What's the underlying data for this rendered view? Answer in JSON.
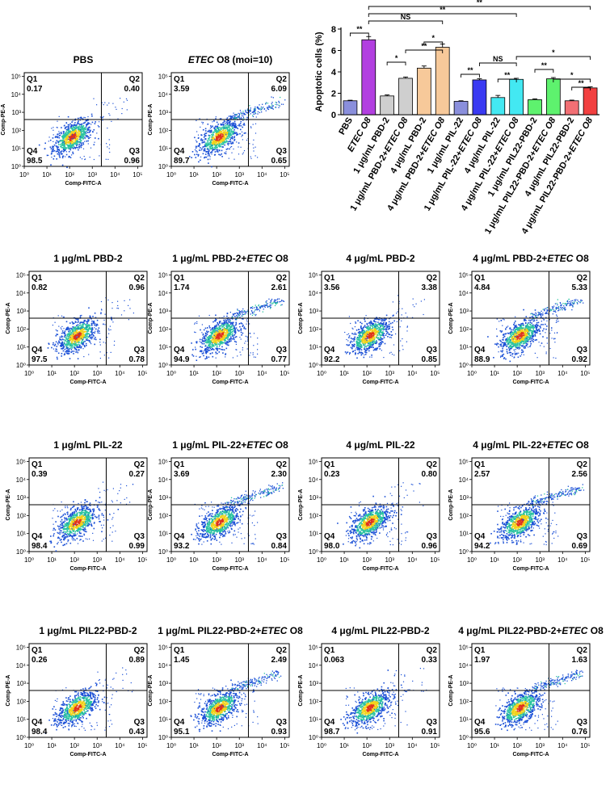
{
  "colors": {
    "density_low": "#1a4fd6",
    "density_mid": "#2bc4a0",
    "density_high": "#f2d21b",
    "density_peak": "#e0321c"
  },
  "axes": {
    "xlabel": "Comp-FITC-A",
    "ylabel": "Comp-PE-A",
    "ticks": [
      "10⁰",
      "10¹",
      "10²",
      "10³",
      "10⁴",
      "10⁵"
    ],
    "quadrant_labels": [
      "Q1",
      "Q2",
      "Q3",
      "Q4"
    ]
  },
  "chart_data": [
    {
      "type": "bar",
      "title": "",
      "xlabel": "",
      "ylabel": "Apoptotic cells (%)",
      "ylim": [
        0,
        8
      ],
      "yticks": [
        0,
        2,
        4,
        6,
        8
      ],
      "categories": [
        {
          "text": "PBS",
          "italic_part": ""
        },
        {
          "text": "",
          "italic_part": "ETEC O8"
        },
        {
          "text": "1 μg/mL PBD-2",
          "italic_part": ""
        },
        {
          "text": "1 μg/mL PBD-2+",
          "italic_part": "ETEC O8"
        },
        {
          "text": "4 μg/mL PBD-2",
          "italic_part": ""
        },
        {
          "text": "4 μg/mL PBD-2+",
          "italic_part": "ETEC O8"
        },
        {
          "text": "1 μg/mL PIL-22",
          "italic_part": ""
        },
        {
          "text": "1 μg/mL PIL-22+",
          "italic_part": "ETEC O8"
        },
        {
          "text": "4 μg/mL PIL-22",
          "italic_part": ""
        },
        {
          "text": "4 μg/mL PIL-22+",
          "italic_part": "ETEC O8"
        },
        {
          "text": "1 μg/mL PIL22-PBD-2",
          "italic_part": ""
        },
        {
          "text": "1 μg/mL PIL22-PBD-2+",
          "italic_part": "ETEC O8"
        },
        {
          "text": "4 μg/mL PIL22-PBD-2",
          "italic_part": ""
        },
        {
          "text": "4 μg/mL PIL22-PBD-2+",
          "italic_part": "ETEC O8"
        }
      ],
      "values": [
        1.3,
        7.0,
        1.75,
        3.4,
        4.35,
        6.3,
        1.25,
        3.25,
        1.6,
        3.3,
        1.4,
        3.35,
        1.3,
        2.5
      ],
      "errors": [
        0.05,
        0.3,
        0.1,
        0.12,
        0.2,
        0.3,
        0.05,
        0.12,
        0.2,
        0.1,
        0.08,
        0.12,
        0.06,
        0.1
      ],
      "bar_colors": [
        "#8a8fdc",
        "#b23fe0",
        "#cfcfcf",
        "#cfcfcf",
        "#f7c99a",
        "#f7c99a",
        "#8a8fdc",
        "#3a3af2",
        "#43e8f2",
        "#43e8f2",
        "#5ef26e",
        "#5ef26e",
        "#f26f74",
        "#f24040"
      ],
      "significance": [
        {
          "from": 0,
          "to": 1,
          "label": "**"
        },
        {
          "from": 1,
          "to": 5,
          "label": "NS"
        },
        {
          "from": 1,
          "to": 9,
          "label": "**"
        },
        {
          "from": 1,
          "to": 13,
          "label": "**"
        },
        {
          "from": 2,
          "to": 3,
          "label": "*"
        },
        {
          "from": 3,
          "to": 5,
          "label": "**"
        },
        {
          "from": 4,
          "to": 5,
          "label": "*"
        },
        {
          "from": 6,
          "to": 7,
          "label": "**"
        },
        {
          "from": 7,
          "to": 9,
          "label": "NS"
        },
        {
          "from": 8,
          "to": 9,
          "label": "**"
        },
        {
          "from": 9,
          "to": 13,
          "label": "*"
        },
        {
          "from": 10,
          "to": 11,
          "label": "**"
        },
        {
          "from": 11,
          "to": 13,
          "label": "*"
        },
        {
          "from": 12,
          "to": 13,
          "label": "**"
        }
      ]
    },
    {
      "type": "scatter",
      "subtype": "flow-cytometry-panels",
      "panels": [
        {
          "title": "PBS",
          "title_italic": "",
          "title_suffix": "",
          "q1": "0.17",
          "q2": "0.40",
          "q3": "0.96",
          "q4": "98.5",
          "infected": false
        },
        {
          "title": "",
          "title_italic": "ETEC",
          "title_suffix": " O8 (moi=10)",
          "q1": "3.59",
          "q2": "6.09",
          "q3": "0.65",
          "q4": "89.7",
          "infected": true
        },
        {
          "title": "1 μg/mL PBD-2",
          "title_italic": "",
          "title_suffix": "",
          "q1": "0.82",
          "q2": "0.96",
          "q3": "0.78",
          "q4": "97.5",
          "infected": false
        },
        {
          "title": "1 μg/mL PBD-2+",
          "title_italic": "ETEC",
          "title_suffix": " O8",
          "q1": "1.74",
          "q2": "2.61",
          "q3": "0.77",
          "q4": "94.9",
          "infected": true
        },
        {
          "title": "4 μg/mL PBD-2",
          "title_italic": "",
          "title_suffix": "",
          "q1": "3.56",
          "q2": "3.38",
          "q3": "0.85",
          "q4": "92.2",
          "infected": false
        },
        {
          "title": "4 μg/mL PBD-2+",
          "title_italic": "ETEC",
          "title_suffix": " O8",
          "q1": "4.84",
          "q2": "5.33",
          "q3": "0.92",
          "q4": "88.9",
          "infected": true
        },
        {
          "title": "1 μg/mL PIL-22",
          "title_italic": "",
          "title_suffix": "",
          "q1": "0.39",
          "q2": "0.27",
          "q3": "0.99",
          "q4": "98.4",
          "infected": false
        },
        {
          "title": "1 μg/mL PIL-22+",
          "title_italic": "ETEC",
          "title_suffix": " O8",
          "q1": "3.69",
          "q2": "2.30",
          "q3": "0.84",
          "q4": "93.2",
          "infected": true
        },
        {
          "title": "4 μg/mL PIL-22",
          "title_italic": "",
          "title_suffix": "",
          "q1": "0.23",
          "q2": "0.80",
          "q3": "0.96",
          "q4": "98.0",
          "infected": false
        },
        {
          "title": "4 μg/mL PIL-22+",
          "title_italic": "ETEC",
          "title_suffix": " O8",
          "q1": "2.57",
          "q2": "2.56",
          "q3": "0.69",
          "q4": "94.2",
          "infected": true
        },
        {
          "title": "1 μg/mL PIL22-PBD-2",
          "title_italic": "",
          "title_suffix": "",
          "q1": "0.26",
          "q2": "0.89",
          "q3": "0.43",
          "q4": "98.4",
          "infected": false
        },
        {
          "title": "1 μg/mL  PIL22-PBD-2+",
          "title_italic": "ETEC",
          "title_suffix": " O8",
          "q1": "1.45",
          "q2": "2.49",
          "q3": "0.93",
          "q4": "95.1",
          "infected": true
        },
        {
          "title": "4 μg/mL  PIL22-PBD-2",
          "title_italic": "",
          "title_suffix": "",
          "q1": "0.063",
          "q2": "0.33",
          "q3": "0.91",
          "q4": "98.7",
          "infected": false
        },
        {
          "title": "4 μg/mL  PIL22-PBD-2+",
          "title_italic": "ETEC",
          "title_suffix": " O8",
          "q1": "1.97",
          "q2": "1.63",
          "q3": "0.76",
          "q4": "95.6",
          "infected": true
        }
      ]
    }
  ]
}
